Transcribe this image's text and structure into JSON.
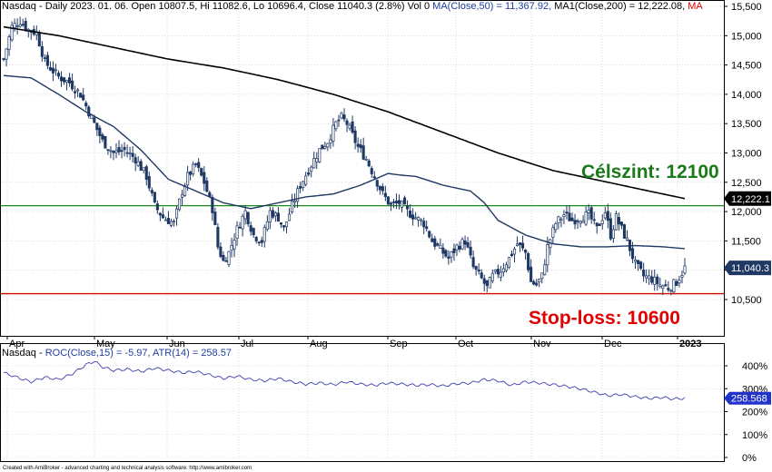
{
  "header": {
    "symbol": "Nasdaq",
    "info": "Daily 2023. 01. 06. Open 10807.5, Hi 11082.6, Lo 10696.4, Close 11040.3 (2.8%) Vol 0",
    "ma50": "MA(Close,50) = 11,367.92,",
    "ma200": "MA1(Close,200) = 12,222.08,",
    "ma_tail": "MA"
  },
  "sub_header": {
    "symbol": "Nasdaq",
    "roc": "ROC(Close,15) = -5.97,",
    "atr": "ATR(14) = 258.57"
  },
  "annotations": {
    "target": "Célszint: 12100",
    "stop": "Stop-loss: 10600"
  },
  "footer": "Created with AmiBroker - advanced charting and technical analysis software. http://www.amibroker.com",
  "colors": {
    "candle": "#1f3864",
    "ma50": "#1f3864",
    "ma200": "#000000",
    "target_line": "#1a8a1a",
    "stop_line": "#d40000",
    "atr_line": "#3f3fb0",
    "price_tag": "#1f3864",
    "grid": "#c8c8c8"
  },
  "chart_data": [
    {
      "type": "candlestick",
      "title": "Nasdaq - Daily",
      "x_months": [
        "Apr",
        "May",
        "Jun",
        "Jul",
        "Aug",
        "Sep",
        "Oct",
        "Nov",
        "Dec",
        "2023"
      ],
      "ylim": [
        10000,
        15500
      ],
      "y_ticks": [
        "10,500",
        "11,000",
        "11,500",
        "12,000",
        "12,500",
        "13,000",
        "13,500",
        "14,000",
        "14,500",
        "15,000",
        "15,500"
      ],
      "grid": true,
      "close_path": [
        [
          0,
          14600
        ],
        [
          3,
          15150
        ],
        [
          6,
          15250
        ],
        [
          9,
          15100
        ],
        [
          12,
          15050
        ],
        [
          15,
          14550
        ],
        [
          20,
          14300
        ],
        [
          24,
          14200
        ],
        [
          28,
          14000
        ],
        [
          32,
          13600
        ],
        [
          36,
          13200
        ],
        [
          40,
          13000
        ],
        [
          44,
          13050
        ],
        [
          48,
          12900
        ],
        [
          52,
          12600
        ],
        [
          55,
          12100
        ],
        [
          58,
          11900
        ],
        [
          62,
          11800
        ],
        [
          65,
          12350
        ],
        [
          67,
          12600
        ],
        [
          70,
          12800
        ],
        [
          73,
          12500
        ],
        [
          76,
          12050
        ],
        [
          78,
          11400
        ],
        [
          80,
          11150
        ],
        [
          82,
          11300
        ],
        [
          85,
          11700
        ],
        [
          88,
          12000
        ],
        [
          91,
          11600
        ],
        [
          94,
          11500
        ],
        [
          97,
          12000
        ],
        [
          100,
          11900
        ],
        [
          102,
          11700
        ],
        [
          105,
          12100
        ],
        [
          108,
          12450
        ],
        [
          112,
          12800
        ],
        [
          115,
          13050
        ],
        [
          118,
          13200
        ],
        [
          121,
          13500
        ],
        [
          123,
          13600
        ],
        [
          125,
          13500
        ],
        [
          127,
          13300
        ],
        [
          129,
          13100
        ],
        [
          132,
          12900
        ],
        [
          135,
          12600
        ],
        [
          138,
          12300
        ],
        [
          141,
          12100
        ],
        [
          144,
          12150
        ],
        [
          147,
          12000
        ],
        [
          150,
          11900
        ],
        [
          153,
          11800
        ],
        [
          156,
          11500
        ],
        [
          159,
          11350
        ],
        [
          162,
          11200
        ],
        [
          165,
          11400
        ],
        [
          168,
          11500
        ],
        [
          171,
          11050
        ],
        [
          174,
          10850
        ],
        [
          176,
          10700
        ],
        [
          178,
          10900
        ],
        [
          181,
          11000
        ],
        [
          184,
          11200
        ],
        [
          187,
          11450
        ],
        [
          190,
          11300
        ],
        [
          192,
          10800
        ],
        [
          194,
          10750
        ],
        [
          196,
          10900
        ],
        [
          198,
          11400
        ],
        [
          201,
          11800
        ],
        [
          204,
          11950
        ],
        [
          207,
          11850
        ],
        [
          210,
          11900
        ],
        [
          213,
          11950
        ],
        [
          216,
          11700
        ],
        [
          219,
          12000
        ],
        [
          221,
          11600
        ],
        [
          223,
          11900
        ],
        [
          225,
          11700
        ],
        [
          227,
          11500
        ],
        [
          230,
          11100
        ],
        [
          233,
          10900
        ],
        [
          236,
          10850
        ],
        [
          239,
          10750
        ],
        [
          242,
          10700
        ],
        [
          245,
          10800
        ],
        [
          248,
          11040
        ]
      ],
      "ma50": [
        [
          0,
          14320
        ],
        [
          10,
          14280
        ],
        [
          20,
          14000
        ],
        [
          30,
          13700
        ],
        [
          40,
          13450
        ],
        [
          50,
          13050
        ],
        [
          60,
          12550
        ],
        [
          70,
          12350
        ],
        [
          80,
          12150
        ],
        [
          90,
          12050
        ],
        [
          100,
          12150
        ],
        [
          110,
          12250
        ],
        [
          120,
          12300
        ],
        [
          130,
          12450
        ],
        [
          140,
          12650
        ],
        [
          145,
          12620
        ],
        [
          150,
          12600
        ],
        [
          160,
          12450
        ],
        [
          170,
          12350
        ],
        [
          175,
          12150
        ],
        [
          180,
          11850
        ],
        [
          190,
          11600
        ],
        [
          200,
          11450
        ],
        [
          210,
          11400
        ],
        [
          220,
          11400
        ],
        [
          230,
          11420
        ],
        [
          240,
          11400
        ],
        [
          248,
          11368
        ]
      ],
      "ma200": [
        [
          0,
          15150
        ],
        [
          20,
          15000
        ],
        [
          40,
          14800
        ],
        [
          60,
          14600
        ],
        [
          80,
          14450
        ],
        [
          100,
          14250
        ],
        [
          120,
          14000
        ],
        [
          140,
          13700
        ],
        [
          160,
          13350
        ],
        [
          180,
          13000
        ],
        [
          200,
          12700
        ],
        [
          220,
          12500
        ],
        [
          240,
          12300
        ],
        [
          248,
          12222
        ]
      ],
      "levels": {
        "target": 12100,
        "stop": 10600
      },
      "last_price_label": "11,040.3",
      "ma200_label": "12,222.1"
    },
    {
      "type": "line",
      "title": "ATR(14)",
      "y_ticks": [
        "0%",
        "100%",
        "200%",
        "300%",
        "400%"
      ],
      "ylim": [
        0,
        500
      ],
      "grid": true,
      "atr_path": [
        [
          0,
          370
        ],
        [
          6,
          345
        ],
        [
          10,
          330
        ],
        [
          15,
          350
        ],
        [
          20,
          340
        ],
        [
          25,
          365
        ],
        [
          30,
          405
        ],
        [
          33,
          420
        ],
        [
          36,
          395
        ],
        [
          40,
          380
        ],
        [
          45,
          385
        ],
        [
          50,
          375
        ],
        [
          55,
          390
        ],
        [
          60,
          380
        ],
        [
          65,
          370
        ],
        [
          70,
          375
        ],
        [
          75,
          360
        ],
        [
          80,
          345
        ],
        [
          85,
          355
        ],
        [
          90,
          340
        ],
        [
          95,
          335
        ],
        [
          100,
          345
        ],
        [
          105,
          330
        ],
        [
          110,
          320
        ],
        [
          115,
          325
        ],
        [
          120,
          318
        ],
        [
          125,
          330
        ],
        [
          130,
          320
        ],
        [
          135,
          315
        ],
        [
          140,
          325
        ],
        [
          145,
          320
        ],
        [
          150,
          315
        ],
        [
          155,
          318
        ],
        [
          160,
          312
        ],
        [
          165,
          322
        ],
        [
          170,
          325
        ],
        [
          175,
          340
        ],
        [
          180,
          335
        ],
        [
          185,
          315
        ],
        [
          190,
          330
        ],
        [
          195,
          325
        ],
        [
          200,
          318
        ],
        [
          205,
          310
        ],
        [
          210,
          300
        ],
        [
          215,
          285
        ],
        [
          220,
          270
        ],
        [
          225,
          275
        ],
        [
          230,
          265
        ],
        [
          235,
          258
        ],
        [
          240,
          262
        ],
        [
          244,
          255
        ],
        [
          248,
          258.57
        ]
      ],
      "last_value_label": "258.568"
    }
  ]
}
